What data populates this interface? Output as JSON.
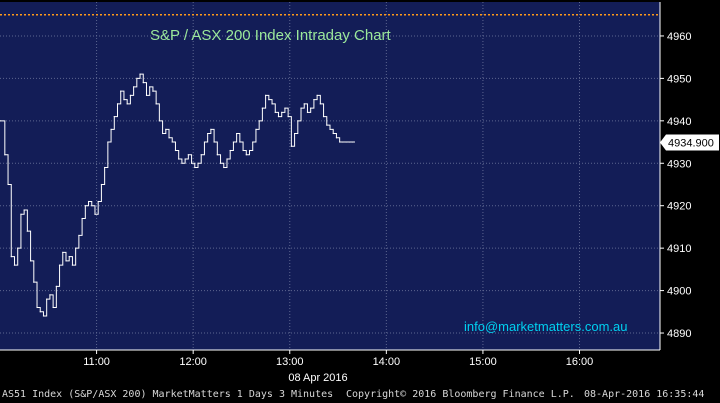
{
  "chart_data": {
    "type": "line",
    "title": "S&P / ASX 200 Index Intraday Chart",
    "watermark": "info@marketmatters.com.au",
    "date_label": "08 Apr 2016",
    "last_price_label": "4934.900",
    "last_price": 4934.9,
    "reference_level": 4965,
    "ylim": [
      4886,
      4968
    ],
    "y_ticks": [
      4890,
      4900,
      4910,
      4920,
      4930,
      4940,
      4950,
      4960
    ],
    "x_ticks": [
      {
        "label": "11:00",
        "t": 660
      },
      {
        "label": "12:00",
        "t": 720
      },
      {
        "label": "13:00",
        "t": 780
      },
      {
        "label": "14:00",
        "t": 840
      },
      {
        "label": "15:00",
        "t": 900
      },
      {
        "label": "16:00",
        "t": 960
      }
    ],
    "xlim": [
      600,
      1010
    ],
    "grid": true,
    "colors": {
      "background": "#131d57",
      "grid": "#5d6690",
      "line": "#ffffff",
      "title": "#9be89b",
      "watermark": "#00d0f0",
      "reference": "#ff9a1a"
    },
    "series": [
      {
        "values": [
          [
            600,
            4940
          ],
          [
            603,
            4932
          ],
          [
            605,
            4925
          ],
          [
            607,
            4908
          ],
          [
            609,
            4906
          ],
          [
            611,
            4910
          ],
          [
            613,
            4918
          ],
          [
            615,
            4919
          ],
          [
            617,
            4914
          ],
          [
            619,
            4907
          ],
          [
            621,
            4902
          ],
          [
            623,
            4896
          ],
          [
            625,
            4895
          ],
          [
            627,
            4894
          ],
          [
            629,
            4898
          ],
          [
            631,
            4899
          ],
          [
            633,
            4896
          ],
          [
            635,
            4901
          ],
          [
            637,
            4906
          ],
          [
            639,
            4909
          ],
          [
            641,
            4907
          ],
          [
            643,
            4908
          ],
          [
            645,
            4906
          ],
          [
            647,
            4910
          ],
          [
            649,
            4913
          ],
          [
            651,
            4917
          ],
          [
            653,
            4920
          ],
          [
            655,
            4921
          ],
          [
            657,
            4920
          ],
          [
            659,
            4918
          ],
          [
            661,
            4921
          ],
          [
            663,
            4925
          ],
          [
            665,
            4929
          ],
          [
            667,
            4935
          ],
          [
            669,
            4938
          ],
          [
            671,
            4941
          ],
          [
            673,
            4944
          ],
          [
            675,
            4947
          ],
          [
            677,
            4945
          ],
          [
            679,
            4944
          ],
          [
            681,
            4946
          ],
          [
            683,
            4948
          ],
          [
            685,
            4950
          ],
          [
            687,
            4951
          ],
          [
            689,
            4949
          ],
          [
            691,
            4946
          ],
          [
            693,
            4948
          ],
          [
            695,
            4947
          ],
          [
            697,
            4944
          ],
          [
            699,
            4940
          ],
          [
            701,
            4937
          ],
          [
            703,
            4938
          ],
          [
            705,
            4936
          ],
          [
            707,
            4935
          ],
          [
            709,
            4933
          ],
          [
            711,
            4931
          ],
          [
            713,
            4930
          ],
          [
            715,
            4931
          ],
          [
            717,
            4932
          ],
          [
            719,
            4930
          ],
          [
            721,
            4929
          ],
          [
            723,
            4930
          ],
          [
            725,
            4932
          ],
          [
            727,
            4935
          ],
          [
            729,
            4937
          ],
          [
            731,
            4938
          ],
          [
            733,
            4935
          ],
          [
            735,
            4932
          ],
          [
            737,
            4930
          ],
          [
            739,
            4929
          ],
          [
            741,
            4931
          ],
          [
            743,
            4933
          ],
          [
            745,
            4935
          ],
          [
            747,
            4937
          ],
          [
            749,
            4935
          ],
          [
            751,
            4933
          ],
          [
            753,
            4932
          ],
          [
            755,
            4933
          ],
          [
            757,
            4935
          ],
          [
            759,
            4938
          ],
          [
            761,
            4940
          ],
          [
            763,
            4943
          ],
          [
            765,
            4946
          ],
          [
            767,
            4945
          ],
          [
            769,
            4944
          ],
          [
            771,
            4942
          ],
          [
            773,
            4941
          ],
          [
            775,
            4942
          ],
          [
            777,
            4943
          ],
          [
            779,
            4941
          ],
          [
            781,
            4934
          ],
          [
            783,
            4937
          ],
          [
            785,
            4940
          ],
          [
            787,
            4943
          ],
          [
            789,
            4944
          ],
          [
            791,
            4942
          ],
          [
            793,
            4943
          ],
          [
            795,
            4945
          ],
          [
            797,
            4946
          ],
          [
            799,
            4944
          ],
          [
            801,
            4941
          ],
          [
            803,
            4939
          ],
          [
            805,
            4938
          ],
          [
            807,
            4937
          ],
          [
            809,
            4936
          ],
          [
            811,
            4935
          ],
          [
            813,
            4935
          ],
          [
            815,
            4935
          ],
          [
            817,
            4935
          ],
          [
            819,
            4935
          ]
        ]
      }
    ]
  },
  "footer": {
    "ticker": "AS51 Index (S&P/ASX 200) MarketMatters 1 Days 3 Minutes",
    "copyright": "Copyright© 2016 Bloomberg Finance L.P.",
    "timestamp": "08-Apr-2016 16:35:44"
  }
}
